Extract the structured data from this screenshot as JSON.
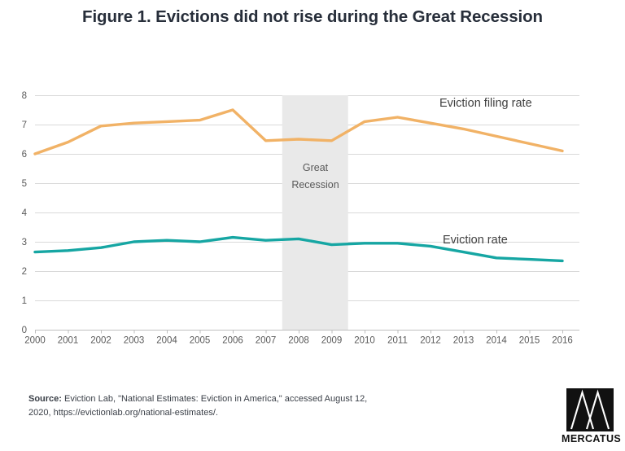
{
  "title": "Figure 1. Evictions did not rise during the Great Recession",
  "chart_data": {
    "type": "line",
    "title": "Figure 1. Evictions did not rise during the Great Recession",
    "xlabel": "",
    "ylabel": "",
    "x": [
      2000,
      2001,
      2002,
      2003,
      2004,
      2005,
      2006,
      2007,
      2008,
      2009,
      2010,
      2011,
      2012,
      2013,
      2014,
      2015,
      2016
    ],
    "y_ticks": [
      0,
      1,
      2,
      3,
      4,
      5,
      6,
      7,
      8
    ],
    "ylim": [
      0,
      8
    ],
    "grid": "horizontal",
    "legend_position": "inline-labels-right",
    "series": [
      {
        "name": "Eviction filing rate",
        "color": "#F1B266",
        "values": [
          6.0,
          6.4,
          6.95,
          7.05,
          7.1,
          7.15,
          7.5,
          6.45,
          6.5,
          6.45,
          7.1,
          7.25,
          7.05,
          6.85,
          6.6,
          6.35,
          6.1
        ]
      },
      {
        "name": "Eviction rate",
        "color": "#16A6A3",
        "values": [
          2.65,
          2.7,
          2.8,
          3.0,
          3.05,
          3.0,
          3.15,
          3.05,
          3.1,
          2.9,
          2.95,
          2.95,
          2.85,
          2.65,
          2.45,
          2.4,
          2.35
        ]
      }
    ],
    "recession_band": {
      "label": "Great Recession",
      "x_start": 2007.5,
      "x_end": 2009.5,
      "color": "#E9E9E9"
    }
  },
  "labels": {
    "recession_line1": "Great",
    "recession_line2": "Recession"
  },
  "source": {
    "label": "Source:",
    "text": " Eviction Lab, \"National Estimates: Eviction in America,\" accessed August 12, 2020, https://evictionlab.org/national-estimates/."
  },
  "logo": {
    "text": "MERCATUS"
  },
  "colors": {
    "filing_line": "#F1B266",
    "eviction_line": "#16A6A3",
    "recession_band": "#E9E9E9",
    "gridline": "#D9D9D9",
    "axis": "#BFBFBF",
    "tick_label": "#595959",
    "title_text": "#272E3A"
  }
}
